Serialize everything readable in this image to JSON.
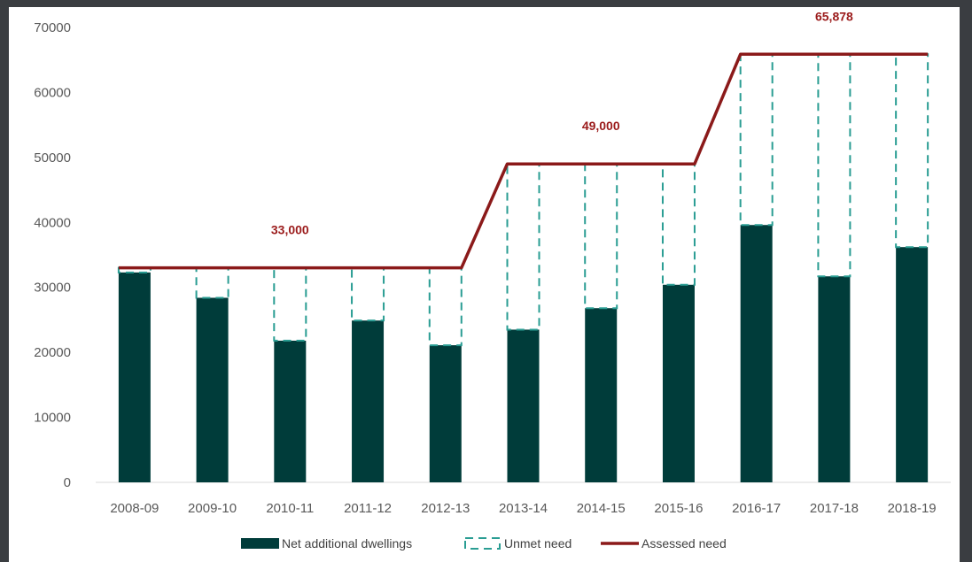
{
  "chart_data": {
    "type": "bar",
    "categories": [
      "2008-09",
      "2009-10",
      "2010-11",
      "2011-12",
      "2012-13",
      "2013-14",
      "2014-15",
      "2015-16",
      "2016-17",
      "2017-18",
      "2018-19"
    ],
    "ylim": [
      0,
      70000
    ],
    "yticks": [
      0,
      10000,
      20000,
      30000,
      40000,
      50000,
      60000,
      70000
    ],
    "ytick_labels": [
      "0",
      "10000",
      "20000",
      "30000",
      "40000",
      "50000",
      "60000",
      "70000"
    ],
    "series": [
      {
        "name": "Net additional dwellings",
        "kind": "bar",
        "color": "#003c3a",
        "values": [
          32300,
          28400,
          21800,
          24900,
          21100,
          23500,
          26800,
          30400,
          39600,
          31700,
          36200
        ]
      },
      {
        "name": "Unmet need",
        "kind": "dashed-box",
        "color": "#2a9d93",
        "values": [
          33000,
          33000,
          33000,
          33000,
          33000,
          49000,
          49000,
          49000,
          65878,
          65878,
          65878
        ]
      },
      {
        "name": "Assessed need",
        "kind": "line",
        "color": "#8b1a1a",
        "values": [
          33000,
          33000,
          33000,
          33000,
          33000,
          49000,
          49000,
          49000,
          65878,
          65878,
          65878
        ]
      }
    ],
    "annotations": [
      {
        "text": "33,000",
        "category_index": 2,
        "value": 33000
      },
      {
        "text": "49,000",
        "category_index": 6,
        "value": 49000
      },
      {
        "text": "65,878",
        "category_index": 9,
        "value": 65878
      }
    ],
    "legend": {
      "position": "bottom",
      "items": [
        {
          "label": "Net additional dwellings",
          "kind": "bar"
        },
        {
          "label": "Unmet need",
          "kind": "dashed-box"
        },
        {
          "label": "Assessed need",
          "kind": "line"
        }
      ]
    },
    "grid": false
  }
}
